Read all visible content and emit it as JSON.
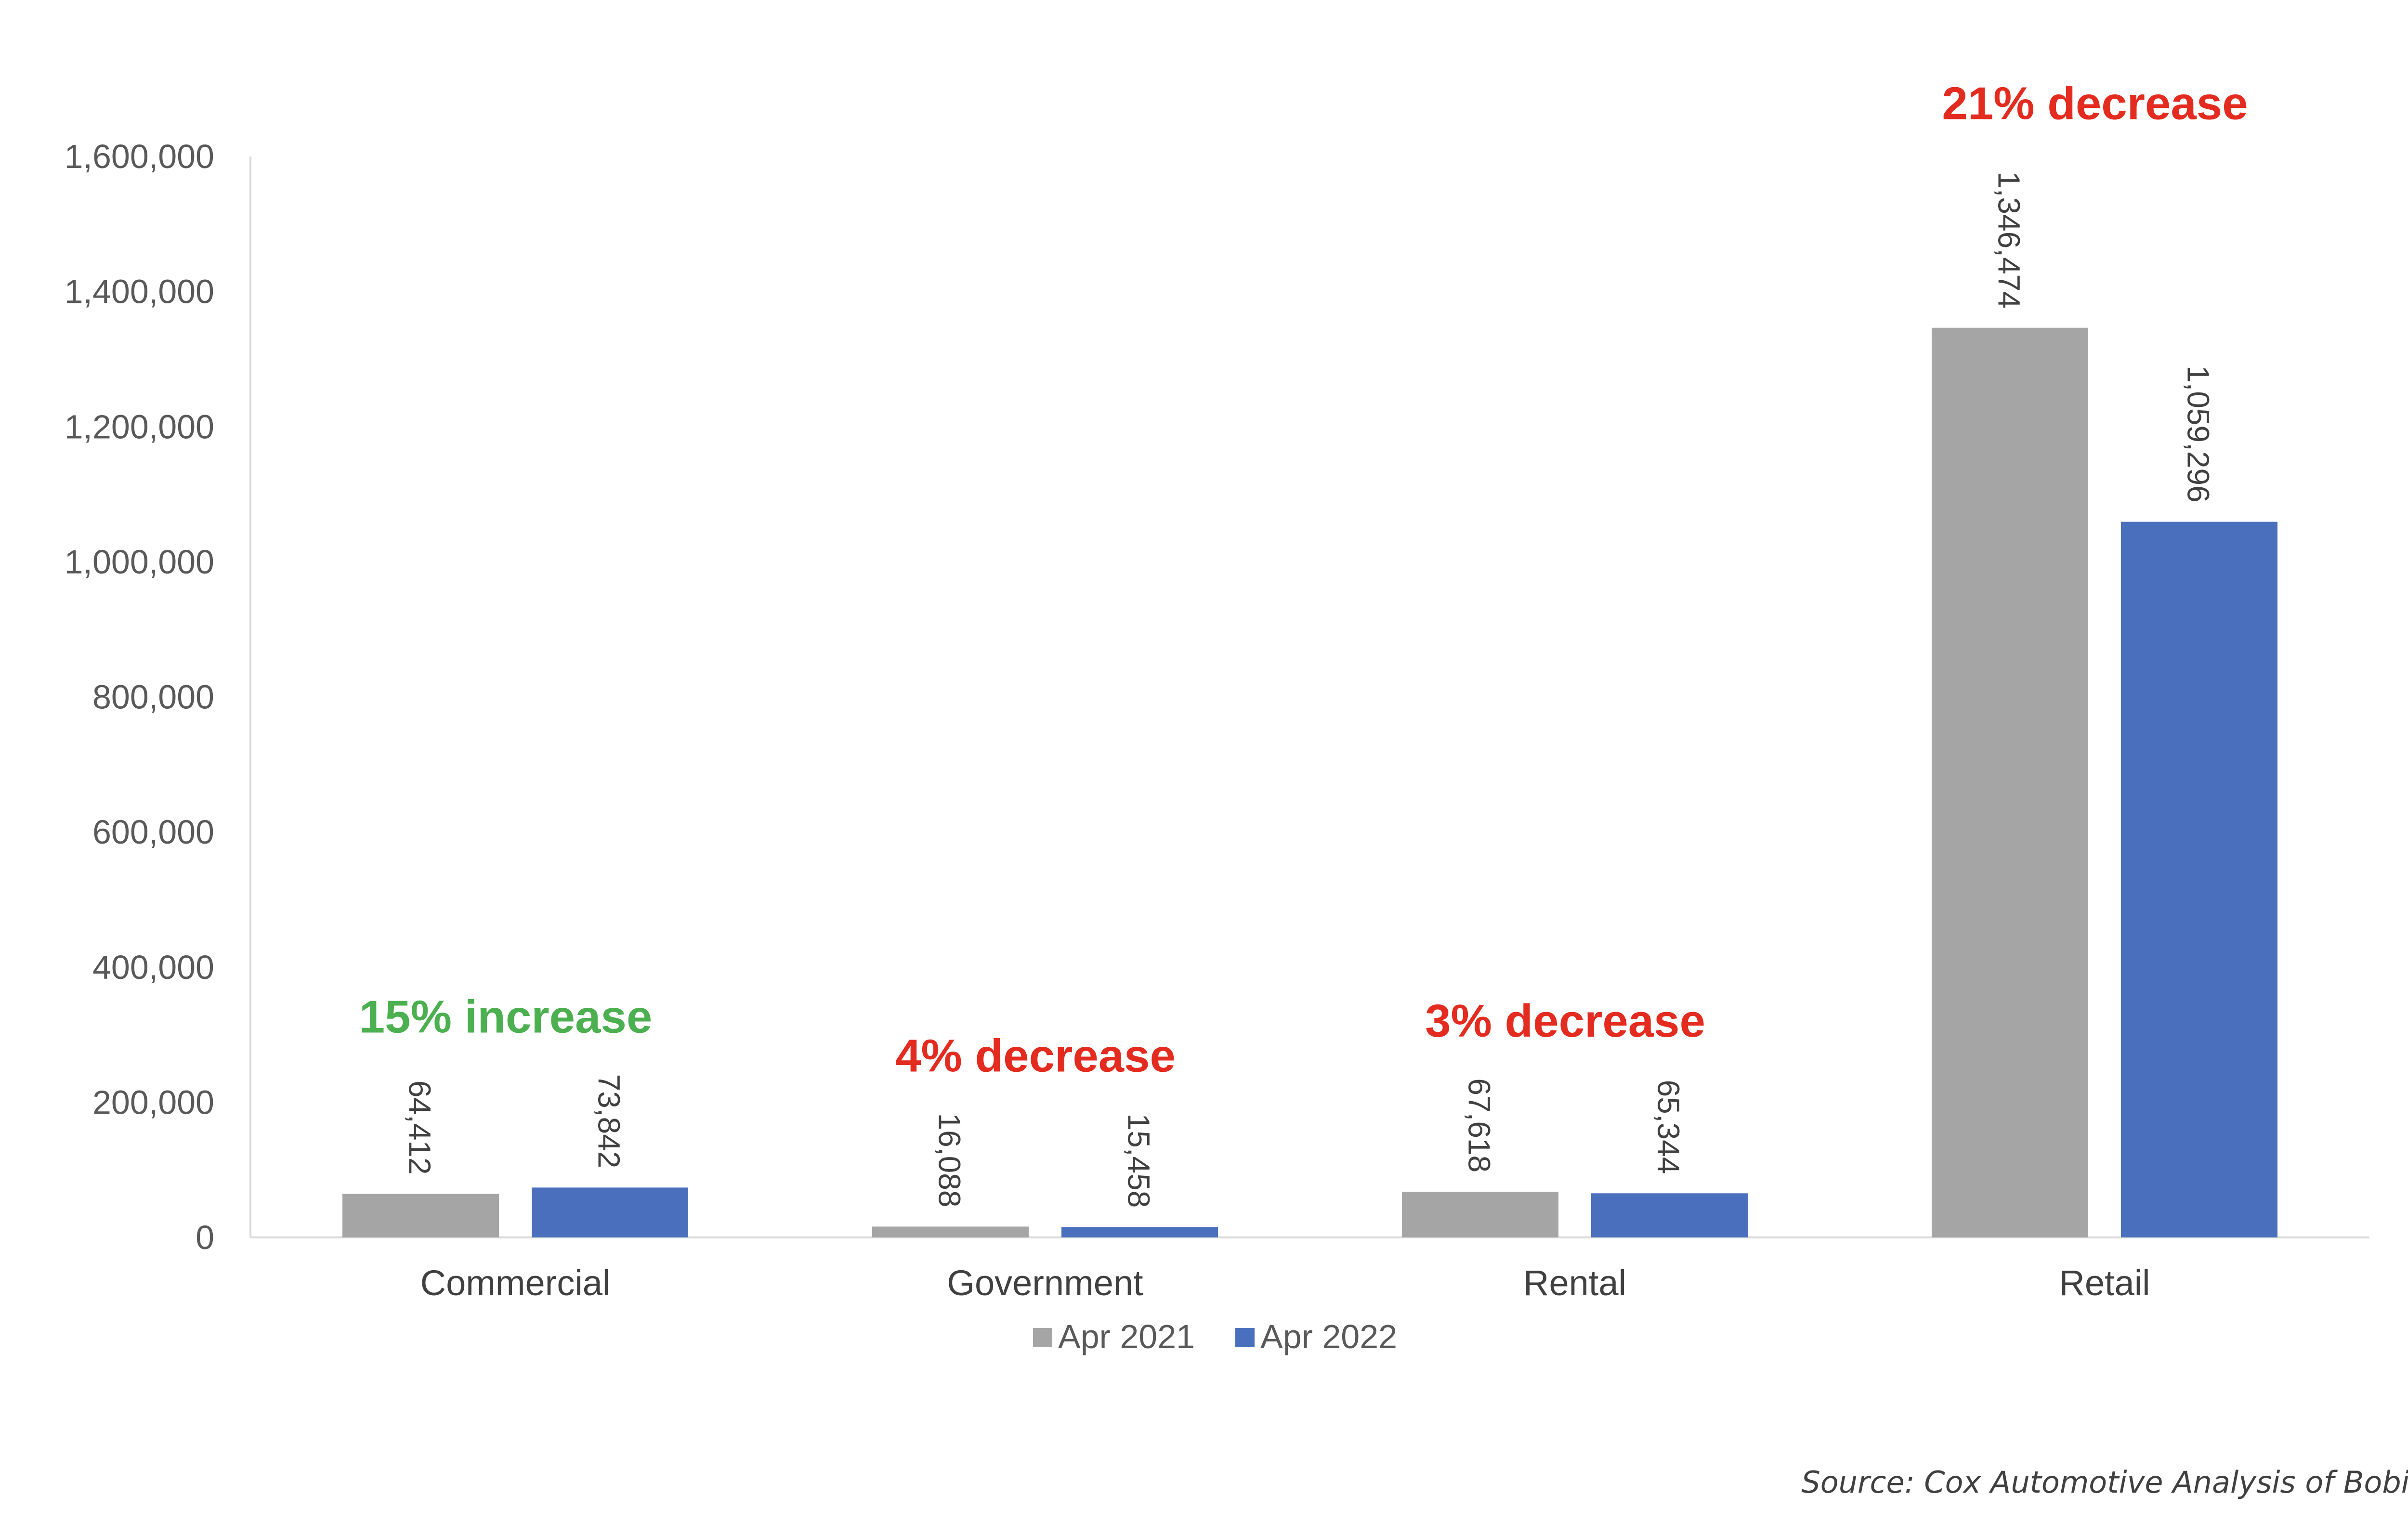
{
  "chart_data": {
    "type": "bar",
    "categories": [
      "Commercial",
      "Government",
      "Rental",
      "Retail"
    ],
    "series": [
      {
        "name": "Apr 2021",
        "color": "#a5a5a5",
        "values": [
          64412,
          16088,
          67618,
          1346474
        ],
        "labels": [
          "64,412",
          "16,088",
          "67,618",
          "1,346,474"
        ]
      },
      {
        "name": "Apr 2022",
        "color": "#4a6fbd",
        "values": [
          73842,
          15458,
          65344,
          1059296
        ],
        "labels": [
          "73,842",
          "15,458",
          "65,344",
          "1,059,296"
        ]
      }
    ],
    "ylim": [
      0,
      1600000
    ],
    "yticks": [
      0,
      200000,
      400000,
      600000,
      800000,
      1000000,
      1200000,
      1400000,
      1600000
    ],
    "ytick_labels": [
      "0",
      "200,000",
      "400,000",
      "600,000",
      "800,000",
      "1,000,000",
      "1,200,000",
      "1,400,000",
      "1,600,000"
    ],
    "grid": false,
    "legend": "bottom",
    "annotations": [
      {
        "category": "Commercial",
        "text": "15% increase",
        "color": "#4caf50"
      },
      {
        "category": "Government",
        "text": "4% decrease",
        "color": "#e32b1f"
      },
      {
        "category": "Rental",
        "text": "3% decrease",
        "color": "#e32b1f"
      },
      {
        "category": "Retail",
        "text": "21% decrease",
        "color": "#e32b1f"
      }
    ],
    "title": "",
    "xlabel": "",
    "ylabel": "",
    "source": "Source: Cox Automotive Analysis of Bobit Data"
  }
}
